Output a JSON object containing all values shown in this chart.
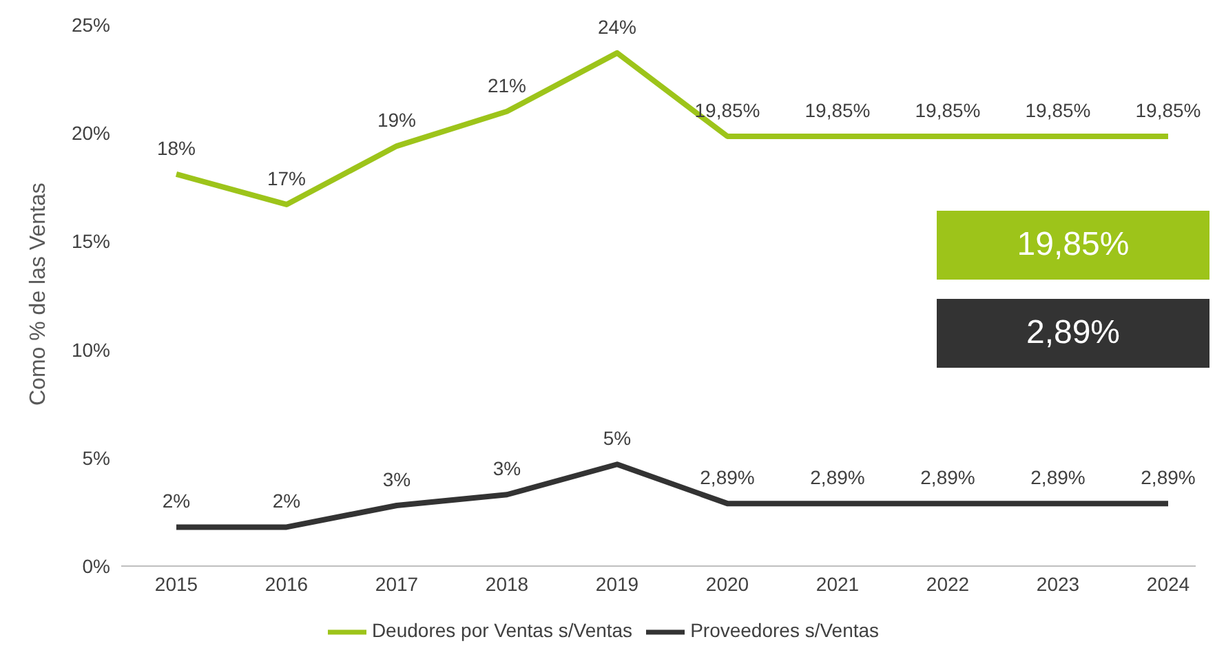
{
  "chart_data": {
    "type": "line",
    "ylabel": "Como % de las Ventas",
    "categories": [
      "2015",
      "2016",
      "2017",
      "2018",
      "2019",
      "2020",
      "2021",
      "2022",
      "2023",
      "2024"
    ],
    "series": [
      {
        "name": "Deudores por Ventas s/Ventas",
        "color": "#9dc41a",
        "values": [
          18.1,
          16.7,
          19.4,
          21.0,
          23.7,
          19.85,
          19.85,
          19.85,
          19.85,
          19.85
        ],
        "value_labels": [
          "18%",
          "17%",
          "19%",
          "21%",
          "24%",
          "19,85%",
          "19,85%",
          "19,85%",
          "19,85%",
          "19,85%"
        ]
      },
      {
        "name": "Proveedores s/Ventas",
        "color": "#333333",
        "values": [
          1.8,
          1.8,
          2.8,
          3.3,
          4.7,
          2.89,
          2.89,
          2.89,
          2.89,
          2.89
        ],
        "value_labels": [
          "2%",
          "2%",
          "3%",
          "3%",
          "5%",
          "2,89%",
          "2,89%",
          "2,89%",
          "2,89%",
          "2,89%"
        ]
      }
    ],
    "ylim": [
      0,
      25
    ],
    "yticks": [
      {
        "value": 0,
        "label": "0%"
      },
      {
        "value": 5,
        "label": "5%"
      },
      {
        "value": 10,
        "label": "10%"
      },
      {
        "value": 15,
        "label": "15%"
      },
      {
        "value": 20,
        "label": "20%"
      },
      {
        "value": 25,
        "label": "25%"
      }
    ],
    "annotations": [
      "19,85%",
      "2,89%"
    ],
    "legend": "bottom",
    "marker": "none",
    "line_style": "solid",
    "grid": false
  }
}
